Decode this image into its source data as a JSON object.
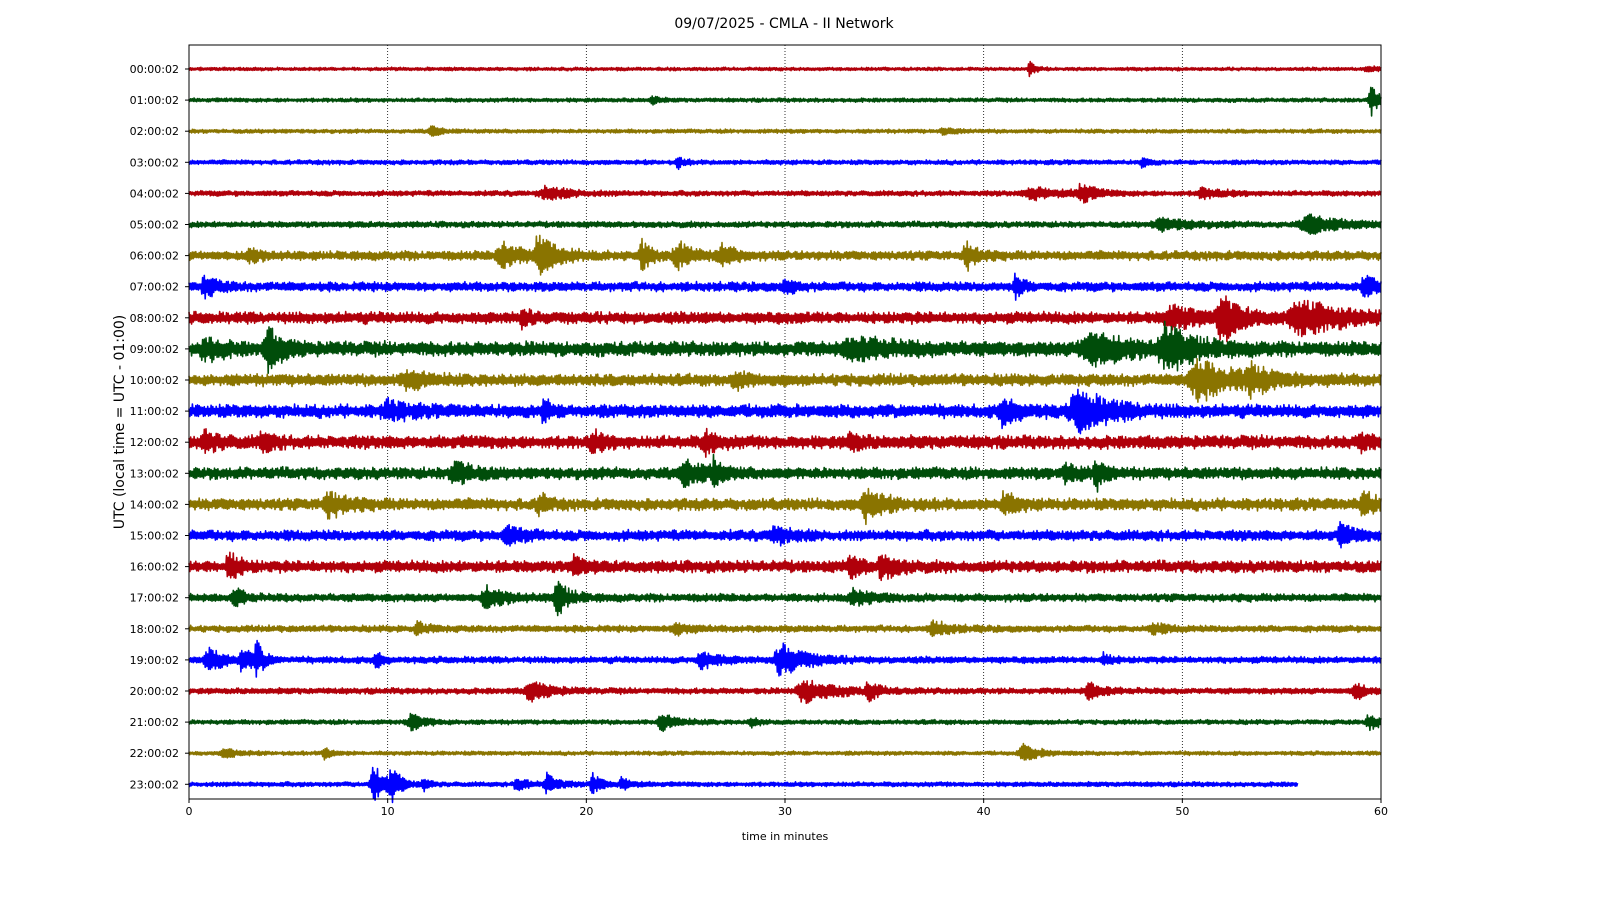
{
  "chart_data": {
    "type": "line",
    "title": "09/07/2025 - CMLA - II Network",
    "xlabel": "time in minutes",
    "ylabel": "UTC (local time = UTC - 01:00)",
    "xlim": [
      0,
      60
    ],
    "x_ticks": [
      0,
      10,
      20,
      30,
      40,
      50,
      60
    ],
    "grid": "vertical dotted lines at 10-minute ticks",
    "colors": [
      "#b0000a",
      "#004d0a",
      "#8a7400",
      "#0000ff"
    ],
    "rows": [
      {
        "label": "00:00:02",
        "color": "#b0000a",
        "noise": 0.25,
        "end": 60,
        "events": [
          {
            "t": 42.3,
            "a": 1.2,
            "w": 0.3
          },
          {
            "t": 59.3,
            "a": 0.6,
            "w": 0.5
          }
        ]
      },
      {
        "label": "01:00:02",
        "color": "#004d0a",
        "noise": 0.3,
        "end": 60,
        "events": [
          {
            "t": 59.5,
            "a": 2.5,
            "w": 0.4
          },
          {
            "t": 23.3,
            "a": 0.8,
            "w": 0.3
          }
        ]
      },
      {
        "label": "02:00:02",
        "color": "#8a7400",
        "noise": 0.3,
        "end": 60,
        "events": [
          {
            "t": 12.2,
            "a": 0.8,
            "w": 0.5
          },
          {
            "t": 38.0,
            "a": 0.6,
            "w": 0.5
          }
        ]
      },
      {
        "label": "03:00:02",
        "color": "#0000ff",
        "noise": 0.35,
        "end": 60,
        "events": [
          {
            "t": 24.6,
            "a": 0.9,
            "w": 0.3
          },
          {
            "t": 48.0,
            "a": 0.9,
            "w": 0.3
          }
        ]
      },
      {
        "label": "04:00:02",
        "color": "#b0000a",
        "noise": 0.4,
        "end": 60,
        "events": [
          {
            "t": 18.0,
            "a": 1.0,
            "w": 1.2
          },
          {
            "t": 44.9,
            "a": 1.6,
            "w": 0.6
          },
          {
            "t": 42.5,
            "a": 0.9,
            "w": 1.5
          },
          {
            "t": 51.0,
            "a": 0.8,
            "w": 1.0
          }
        ]
      },
      {
        "label": "05:00:02",
        "color": "#004d0a",
        "noise": 0.45,
        "end": 60,
        "events": [
          {
            "t": 56.4,
            "a": 1.5,
            "w": 1.5
          },
          {
            "t": 49.0,
            "a": 0.9,
            "w": 1.5
          }
        ]
      },
      {
        "label": "06:00:02",
        "color": "#8a7400",
        "noise": 0.7,
        "end": 60,
        "events": [
          {
            "t": 3.0,
            "a": 1.2,
            "w": 0.6
          },
          {
            "t": 15.8,
            "a": 1.8,
            "w": 1.2
          },
          {
            "t": 17.6,
            "a": 3.0,
            "w": 0.8
          },
          {
            "t": 22.8,
            "a": 2.2,
            "w": 0.5
          },
          {
            "t": 24.6,
            "a": 2.0,
            "w": 0.8
          },
          {
            "t": 26.8,
            "a": 1.7,
            "w": 0.6
          },
          {
            "t": 39.1,
            "a": 2.3,
            "w": 0.5
          }
        ]
      },
      {
        "label": "07:00:02",
        "color": "#0000ff",
        "noise": 0.7,
        "end": 60,
        "events": [
          {
            "t": 0.8,
            "a": 1.6,
            "w": 0.6
          },
          {
            "t": 30.0,
            "a": 1.1,
            "w": 0.5
          },
          {
            "t": 41.6,
            "a": 1.7,
            "w": 0.4
          },
          {
            "t": 59.2,
            "a": 1.6,
            "w": 0.6
          }
        ]
      },
      {
        "label": "08:00:02",
        "color": "#b0000a",
        "noise": 0.9,
        "end": 60,
        "events": [
          {
            "t": 16.8,
            "a": 1.5,
            "w": 0.4
          },
          {
            "t": 49.5,
            "a": 1.6,
            "w": 1.5
          },
          {
            "t": 52.0,
            "a": 3.4,
            "w": 0.9
          },
          {
            "t": 56.0,
            "a": 2.5,
            "w": 2.0
          }
        ]
      },
      {
        "label": "09:00:02",
        "color": "#004d0a",
        "noise": 1.1,
        "end": 60,
        "events": [
          {
            "t": 0.8,
            "a": 1.7,
            "w": 0.8
          },
          {
            "t": 4.0,
            "a": 3.0,
            "w": 0.7
          },
          {
            "t": 33.5,
            "a": 1.5,
            "w": 2.0
          },
          {
            "t": 45.5,
            "a": 2.3,
            "w": 2.2
          },
          {
            "t": 49.2,
            "a": 3.3,
            "w": 1.3
          }
        ]
      },
      {
        "label": "10:00:02",
        "color": "#8a7400",
        "noise": 0.9,
        "end": 60,
        "events": [
          {
            "t": 11.0,
            "a": 1.3,
            "w": 1.0
          },
          {
            "t": 27.5,
            "a": 1.4,
            "w": 0.6
          },
          {
            "t": 50.8,
            "a": 3.0,
            "w": 1.8
          },
          {
            "t": 53.5,
            "a": 1.5,
            "w": 1.2
          }
        ]
      },
      {
        "label": "11:00:02",
        "color": "#0000ff",
        "noise": 1.0,
        "end": 60,
        "events": [
          {
            "t": 10.0,
            "a": 1.3,
            "w": 1.0
          },
          {
            "t": 17.8,
            "a": 1.6,
            "w": 0.4
          },
          {
            "t": 41.0,
            "a": 2.0,
            "w": 0.8
          },
          {
            "t": 44.8,
            "a": 3.3,
            "w": 1.5
          }
        ]
      },
      {
        "label": "12:00:02",
        "color": "#b0000a",
        "noise": 1.0,
        "end": 60,
        "events": [
          {
            "t": 0.8,
            "a": 1.5,
            "w": 0.7
          },
          {
            "t": 3.7,
            "a": 1.5,
            "w": 0.5
          },
          {
            "t": 20.3,
            "a": 1.4,
            "w": 0.6
          },
          {
            "t": 26.0,
            "a": 1.8,
            "w": 0.5
          },
          {
            "t": 33.3,
            "a": 1.3,
            "w": 0.5
          },
          {
            "t": 59.0,
            "a": 1.3,
            "w": 0.5
          }
        ]
      },
      {
        "label": "13:00:02",
        "color": "#004d0a",
        "noise": 0.9,
        "end": 60,
        "events": [
          {
            "t": 13.4,
            "a": 2.1,
            "w": 0.7
          },
          {
            "t": 25.0,
            "a": 1.8,
            "w": 1.0
          },
          {
            "t": 26.4,
            "a": 2.2,
            "w": 0.3
          },
          {
            "t": 45.6,
            "a": 3.2,
            "w": 0.3
          },
          {
            "t": 44.2,
            "a": 1.3,
            "w": 0.8
          }
        ]
      },
      {
        "label": "14:00:02",
        "color": "#8a7400",
        "noise": 0.9,
        "end": 60,
        "events": [
          {
            "t": 7.0,
            "a": 2.1,
            "w": 0.8
          },
          {
            "t": 17.6,
            "a": 1.8,
            "w": 0.4
          },
          {
            "t": 34.1,
            "a": 2.6,
            "w": 0.8
          },
          {
            "t": 41.0,
            "a": 1.7,
            "w": 0.6
          },
          {
            "t": 59.1,
            "a": 2.4,
            "w": 0.5
          }
        ]
      },
      {
        "label": "15:00:02",
        "color": "#0000ff",
        "noise": 0.8,
        "end": 60,
        "events": [
          {
            "t": 16.0,
            "a": 1.3,
            "w": 0.8
          },
          {
            "t": 29.5,
            "a": 1.2,
            "w": 0.8
          },
          {
            "t": 58.0,
            "a": 1.6,
            "w": 0.6
          }
        ]
      },
      {
        "label": "16:00:02",
        "color": "#b0000a",
        "noise": 0.9,
        "end": 60,
        "events": [
          {
            "t": 2.0,
            "a": 2.4,
            "w": 0.5
          },
          {
            "t": 19.4,
            "a": 1.7,
            "w": 0.4
          },
          {
            "t": 33.3,
            "a": 1.6,
            "w": 0.5
          },
          {
            "t": 34.9,
            "a": 1.8,
            "w": 0.7
          }
        ]
      },
      {
        "label": "17:00:02",
        "color": "#004d0a",
        "noise": 0.6,
        "end": 60,
        "events": [
          {
            "t": 2.3,
            "a": 1.8,
            "w": 0.4
          },
          {
            "t": 15.0,
            "a": 1.7,
            "w": 1.0
          },
          {
            "t": 18.5,
            "a": 2.9,
            "w": 0.6
          },
          {
            "t": 33.5,
            "a": 1.1,
            "w": 1.0
          }
        ]
      },
      {
        "label": "18:00:02",
        "color": "#8a7400",
        "noise": 0.5,
        "end": 60,
        "events": [
          {
            "t": 11.5,
            "a": 1.1,
            "w": 0.5
          },
          {
            "t": 24.5,
            "a": 1.1,
            "w": 0.6
          },
          {
            "t": 37.5,
            "a": 1.1,
            "w": 0.8
          },
          {
            "t": 48.5,
            "a": 0.9,
            "w": 0.6
          }
        ]
      },
      {
        "label": "19:00:02",
        "color": "#0000ff",
        "noise": 0.5,
        "end": 60,
        "events": [
          {
            "t": 1.0,
            "a": 1.8,
            "w": 0.8
          },
          {
            "t": 2.7,
            "a": 2.0,
            "w": 0.5
          },
          {
            "t": 3.4,
            "a": 2.8,
            "w": 0.3
          },
          {
            "t": 9.4,
            "a": 1.6,
            "w": 0.3
          },
          {
            "t": 25.8,
            "a": 1.4,
            "w": 0.8
          },
          {
            "t": 29.8,
            "a": 2.6,
            "w": 1.2
          },
          {
            "t": 46.0,
            "a": 1.0,
            "w": 0.4
          }
        ]
      },
      {
        "label": "20:00:02",
        "color": "#b0000a",
        "noise": 0.45,
        "end": 60,
        "events": [
          {
            "t": 17.2,
            "a": 1.5,
            "w": 1.0
          },
          {
            "t": 31.0,
            "a": 1.8,
            "w": 1.4
          },
          {
            "t": 34.2,
            "a": 1.4,
            "w": 0.5
          },
          {
            "t": 45.3,
            "a": 1.3,
            "w": 0.7
          },
          {
            "t": 58.7,
            "a": 1.5,
            "w": 0.5
          }
        ]
      },
      {
        "label": "21:00:02",
        "color": "#004d0a",
        "noise": 0.35,
        "end": 60,
        "events": [
          {
            "t": 11.2,
            "a": 1.3,
            "w": 0.7
          },
          {
            "t": 23.8,
            "a": 1.3,
            "w": 0.8
          },
          {
            "t": 28.3,
            "a": 0.9,
            "w": 0.3
          },
          {
            "t": 59.4,
            "a": 1.2,
            "w": 0.6
          }
        ]
      },
      {
        "label": "22:00:02",
        "color": "#8a7400",
        "noise": 0.3,
        "end": 60,
        "events": [
          {
            "t": 1.8,
            "a": 0.9,
            "w": 0.6
          },
          {
            "t": 6.8,
            "a": 1.0,
            "w": 0.4
          },
          {
            "t": 42.0,
            "a": 1.3,
            "w": 0.8
          }
        ]
      },
      {
        "label": "23:00:02",
        "color": "#0000ff",
        "noise": 0.35,
        "end": 55.8,
        "events": [
          {
            "t": 9.3,
            "a": 3.2,
            "w": 0.6
          },
          {
            "t": 10.2,
            "a": 2.4,
            "w": 0.4
          },
          {
            "t": 11.8,
            "a": 1.0,
            "w": 0.3
          },
          {
            "t": 16.5,
            "a": 1.1,
            "w": 0.5
          },
          {
            "t": 18.0,
            "a": 1.8,
            "w": 0.5
          },
          {
            "t": 20.3,
            "a": 1.8,
            "w": 0.4
          },
          {
            "t": 21.8,
            "a": 1.0,
            "w": 0.5
          }
        ]
      }
    ]
  }
}
